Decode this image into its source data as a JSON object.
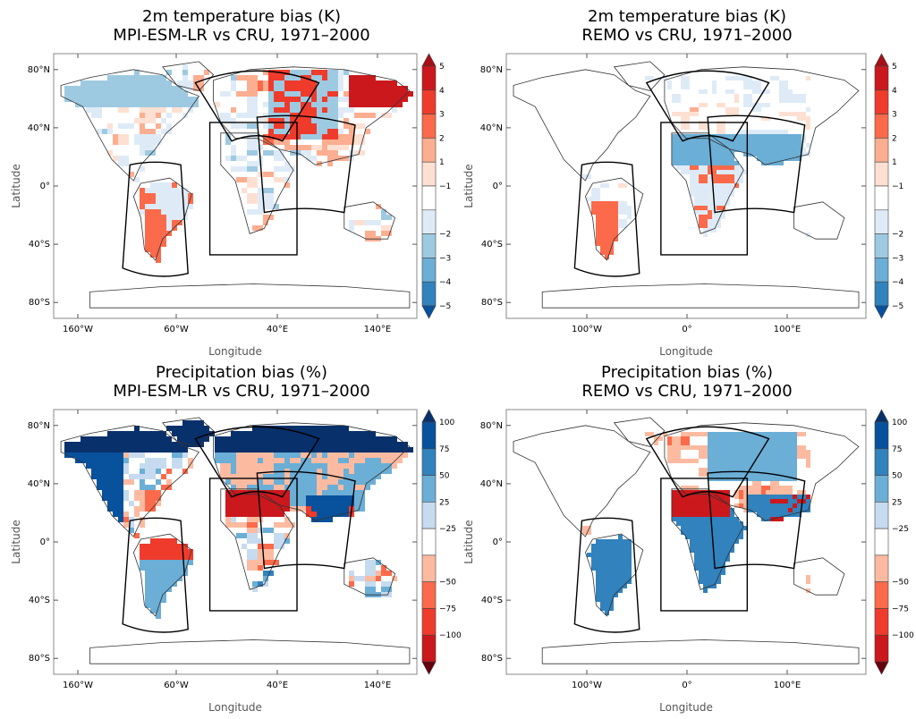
{
  "chart_data": [
    {
      "type": "heatmap",
      "title_line1": "2m temperature bias (K)",
      "title_line2": "MPI-ESM-LR vs CRU, 1971–2000",
      "xlabel": "Longitude",
      "ylabel": "Latitude",
      "x_ticks": [
        "160°W",
        "60°W",
        "40°E",
        "140°E"
      ],
      "y_ticks": [
        "80°N",
        "40°N",
        "0°",
        "40°S",
        "80°S"
      ],
      "colorbar_ticks": [
        "5",
        "4",
        "3",
        "2",
        "1",
        "−1",
        "−2",
        "−3",
        "−4",
        "−5"
      ],
      "colorbar_colors": [
        "#a50f15",
        "#cb181d",
        "#ef3b2c",
        "#fb6a4a",
        "#fcae91",
        "#fee0d2",
        "#ffffff",
        "#deebf7",
        "#9ecae1",
        "#6baed6",
        "#3182bd",
        "#08519c"
      ],
      "pattern": "mpi_t"
    },
    {
      "type": "heatmap",
      "title_line1": "2m temperature bias (K)",
      "title_line2": "REMO vs CRU, 1971–2000",
      "xlabel": "Longitude",
      "ylabel": "Latitude",
      "x_ticks": [
        "100°W",
        "0°",
        "100°E"
      ],
      "y_ticks": [
        "80°N",
        "40°N",
        "0°",
        "40°S",
        "80°S"
      ],
      "colorbar_ticks": [
        "5",
        "4",
        "3",
        "2",
        "1",
        "−1",
        "−2",
        "−3",
        "−4",
        "−5"
      ],
      "colorbar_colors": [
        "#a50f15",
        "#cb181d",
        "#ef3b2c",
        "#fb6a4a",
        "#fcae91",
        "#fee0d2",
        "#ffffff",
        "#deebf7",
        "#9ecae1",
        "#6baed6",
        "#3182bd",
        "#08519c"
      ],
      "pattern": "remo_t"
    },
    {
      "type": "heatmap",
      "title_line1": "Precipitation bias (%)",
      "title_line2": "MPI-ESM-LR vs CRU, 1971–2000",
      "xlabel": "Longitude",
      "ylabel": "Latitude",
      "x_ticks": [
        "160°W",
        "60°W",
        "40°E",
        "140°E"
      ],
      "y_ticks": [
        "80°N",
        "40°N",
        "0°",
        "40°S",
        "80°S"
      ],
      "colorbar_ticks": [
        "100",
        "75",
        "50",
        "25",
        "−25",
        "−50",
        "−75",
        "−100"
      ],
      "colorbar_colors": [
        "#08306b",
        "#08519c",
        "#3182bd",
        "#6baed6",
        "#c6dbef",
        "#ffffff",
        "#fcbba1",
        "#fb6a4a",
        "#ef3b2c",
        "#cb181d",
        "#67000d"
      ],
      "pattern": "mpi_p"
    },
    {
      "type": "heatmap",
      "title_line1": "Precipitation bias (%)",
      "title_line2": "REMO vs CRU, 1971–2000",
      "xlabel": "Longitude",
      "ylabel": "Latitude",
      "x_ticks": [
        "100°W",
        "0°",
        "100°E"
      ],
      "y_ticks": [
        "80°N",
        "40°N",
        "0°",
        "40°S",
        "80°S"
      ],
      "colorbar_ticks": [
        "100",
        "75",
        "50",
        "25",
        "−25",
        "−50",
        "−75",
        "−100"
      ],
      "colorbar_colors": [
        "#08306b",
        "#08519c",
        "#3182bd",
        "#6baed6",
        "#c6dbef",
        "#ffffff",
        "#fcbba1",
        "#fb6a4a",
        "#ef3b2c",
        "#cb181d",
        "#67000d"
      ],
      "pattern": "remo_p"
    }
  ]
}
